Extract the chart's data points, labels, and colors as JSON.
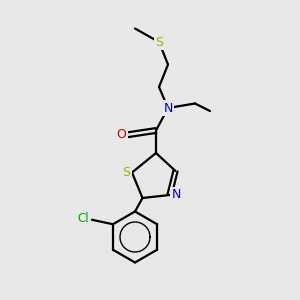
{
  "background_color": "#e8e8e8",
  "bond_color": "#000000",
  "S_color": "#aaaa00",
  "N_color": "#0000cc",
  "O_color": "#cc0000",
  "Cl_color": "#00aa00",
  "figsize": [
    3.0,
    3.0
  ],
  "dpi": 100,
  "xlim": [
    0,
    10
  ],
  "ylim": [
    0,
    10
  ]
}
